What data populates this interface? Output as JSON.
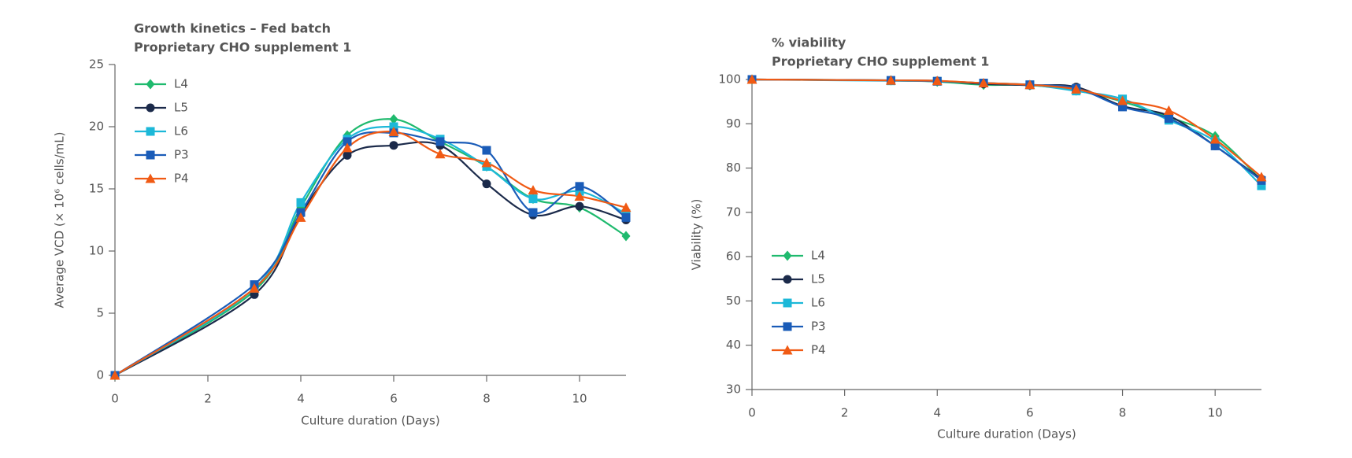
{
  "chart_data": [
    {
      "type": "line",
      "title": "Growth kinetics – Fed batch",
      "subtitle": "Proprietary CHO supplement 1",
      "x_label": "Culture duration (Days)",
      "y_label": "Average VCD (× 10⁶ cells/mL)",
      "x": [
        0,
        3,
        4,
        5,
        6,
        7,
        8,
        9,
        10,
        11
      ],
      "xlim": [
        0,
        11
      ],
      "xticks": [
        0,
        2,
        4,
        6,
        8,
        10
      ],
      "ylim": [
        0,
        25
      ],
      "yticks": [
        0,
        5,
        10,
        15,
        20,
        25
      ],
      "legend": "upper left",
      "series": [
        {
          "name": "L4",
          "color": "#1fba6e",
          "marker": "diamond",
          "values": [
            0,
            6.8,
            13.5,
            19.3,
            20.6,
            18.8,
            16.8,
            14.2,
            13.5,
            11.2
          ]
        },
        {
          "name": "L5",
          "color": "#1b2a4a",
          "marker": "circle",
          "values": [
            0,
            6.5,
            13.0,
            17.7,
            18.5,
            18.5,
            15.4,
            12.9,
            13.6,
            12.5
          ]
        },
        {
          "name": "L6",
          "color": "#1cb8d8",
          "marker": "square",
          "values": [
            0,
            7.0,
            13.9,
            19.0,
            20.0,
            19.0,
            16.8,
            14.2,
            14.8,
            13.0
          ]
        },
        {
          "name": "P3",
          "color": "#1a5cb8",
          "marker": "square",
          "values": [
            0,
            7.3,
            13.1,
            18.8,
            19.5,
            18.8,
            18.1,
            13.1,
            15.2,
            12.7
          ]
        },
        {
          "name": "P4",
          "color": "#f05a14",
          "marker": "triangle",
          "values": [
            0,
            7.0,
            12.7,
            18.3,
            19.6,
            17.8,
            17.1,
            14.9,
            14.4,
            13.5
          ]
        }
      ]
    },
    {
      "type": "line",
      "title": "% viability",
      "subtitle": "Proprietary CHO supplement 1",
      "x_label": "Culture duration (Days)",
      "y_label": "Viability (%)",
      "x": [
        0,
        3,
        4,
        5,
        6,
        7,
        8,
        9,
        10,
        11
      ],
      "xlim": [
        0,
        11
      ],
      "xticks": [
        0,
        2,
        4,
        6,
        8,
        10
      ],
      "ylim": [
        30,
        100
      ],
      "yticks": [
        30,
        40,
        50,
        60,
        70,
        80,
        90,
        100
      ],
      "legend": "lower left",
      "series": [
        {
          "name": "L4",
          "color": "#1fba6e",
          "marker": "diamond",
          "values": [
            100,
            99.8,
            99.5,
            98.8,
            98.7,
            97.5,
            95,
            91.5,
            87.2,
            77.2
          ]
        },
        {
          "name": "L5",
          "color": "#1b2a4a",
          "marker": "circle",
          "values": [
            100,
            99.8,
            99.7,
            99,
            98.7,
            98.3,
            94,
            91.8,
            85,
            77.5
          ]
        },
        {
          "name": "L6",
          "color": "#1cb8d8",
          "marker": "square",
          "values": [
            100,
            99.7,
            99.6,
            99.2,
            98.8,
            97.4,
            95.6,
            90.8,
            86,
            76
          ]
        },
        {
          "name": "P3",
          "color": "#1a5cb8",
          "marker": "square",
          "values": [
            100,
            99.8,
            99.6,
            99.2,
            98.8,
            98,
            93.8,
            91.2,
            85,
            77.2
          ]
        },
        {
          "name": "P4",
          "color": "#f05a14",
          "marker": "triangle",
          "values": [
            100,
            99.8,
            99.7,
            99.2,
            98.8,
            97.8,
            95.2,
            93,
            86.5,
            78
          ]
        }
      ]
    }
  ]
}
